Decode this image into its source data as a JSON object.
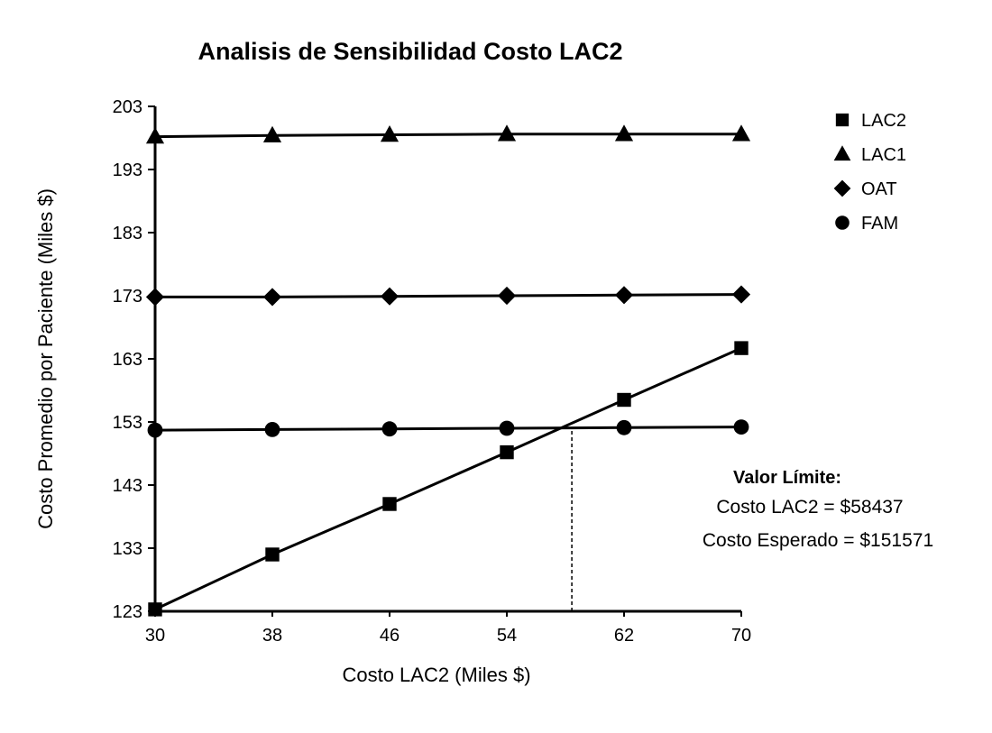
{
  "chart_data": {
    "type": "line",
    "title": "Analisis de Sensibilidad Costo LAC2",
    "xlabel": "Costo LAC2 (Miles $)",
    "ylabel": "Costo Promedio por Paciente (Miles $)",
    "xlim": [
      30,
      70
    ],
    "ylim": [
      123,
      203
    ],
    "x_ticks": [
      "30",
      "38",
      "46",
      "54",
      "62",
      "70"
    ],
    "y_ticks": [
      "123",
      "133",
      "143",
      "153",
      "163",
      "173",
      "183",
      "193",
      "203"
    ],
    "x": [
      30,
      38,
      46,
      54,
      62,
      70
    ],
    "series": [
      {
        "name": "LAC2",
        "marker": "square",
        "values": [
          123.3,
          132,
          140,
          148.2,
          156.5,
          164.7
        ]
      },
      {
        "name": "LAC1",
        "marker": "triangle",
        "values": [
          198.2,
          198.4,
          198.5,
          198.6,
          198.6,
          198.6
        ]
      },
      {
        "name": "OAT",
        "marker": "diamond",
        "values": [
          172.8,
          172.8,
          172.9,
          173,
          173.1,
          173.2
        ]
      },
      {
        "name": "FAM",
        "marker": "circle",
        "values": [
          151.7,
          151.8,
          151.9,
          152,
          152.1,
          152.2
        ]
      }
    ],
    "legend_position": "top-right",
    "grid": false,
    "threshold": {
      "x": 58.437,
      "y": 151.571
    },
    "annotation": {
      "heading": "Valor Límite:",
      "line1": "Costo LAC2 = $58437",
      "line2": "Costo Esperado = $151571"
    }
  }
}
